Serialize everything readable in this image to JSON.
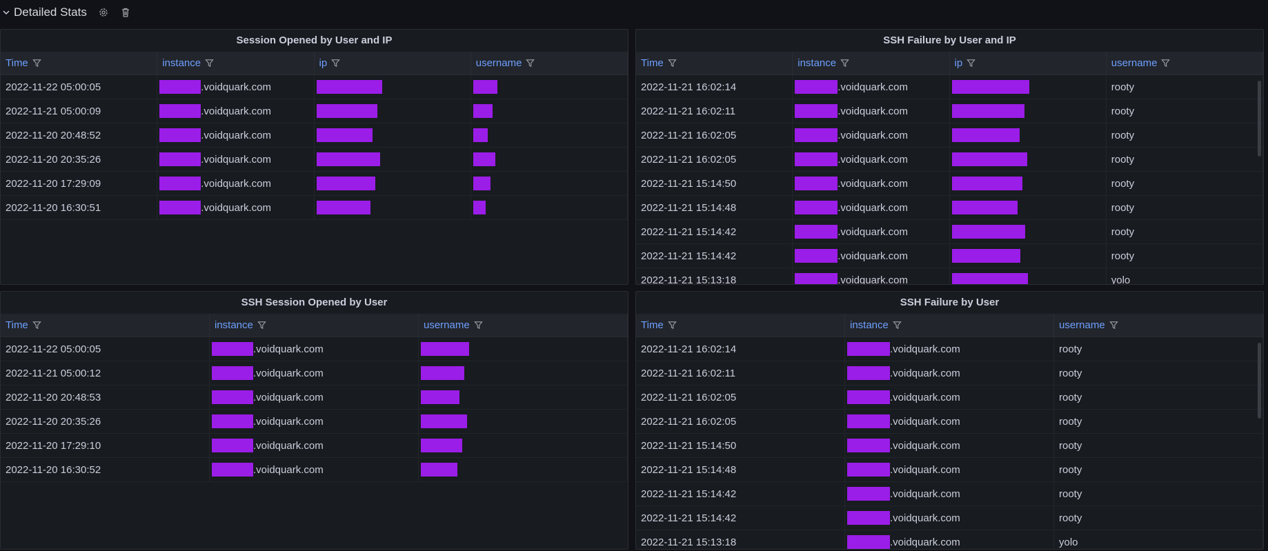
{
  "row": {
    "title": "Detailed Stats"
  },
  "panels": [
    {
      "title": "Session Opened by User and IP",
      "columns": [
        "Time",
        "instance",
        "ip",
        "username"
      ],
      "rows": [
        [
          "2022-11-22 05:00:05",
          ".voidquark.com",
          null,
          null
        ],
        [
          "2022-11-21 05:00:09",
          ".voidquark.com",
          null,
          null
        ],
        [
          "2022-11-20 20:48:52",
          ".voidquark.com",
          null,
          null
        ],
        [
          "2022-11-20 20:35:26",
          ".voidquark.com",
          null,
          null
        ],
        [
          "2022-11-20 17:29:09",
          ".voidquark.com",
          null,
          null
        ],
        [
          "2022-11-20 16:30:51",
          ".voidquark.com",
          null,
          null
        ]
      ]
    },
    {
      "title": "SSH Failure by User and IP",
      "columns": [
        "Time",
        "instance",
        "ip",
        "username"
      ],
      "rows": [
        [
          "2022-11-21 16:02:14",
          ".voidquark.com",
          null,
          "rooty"
        ],
        [
          "2022-11-21 16:02:11",
          ".voidquark.com",
          null,
          "rooty"
        ],
        [
          "2022-11-21 16:02:05",
          ".voidquark.com",
          null,
          "rooty"
        ],
        [
          "2022-11-21 16:02:05",
          ".voidquark.com",
          null,
          "rooty"
        ],
        [
          "2022-11-21 15:14:50",
          ".voidquark.com",
          null,
          "rooty"
        ],
        [
          "2022-11-21 15:14:48",
          ".voidquark.com",
          null,
          "rooty"
        ],
        [
          "2022-11-21 15:14:42",
          ".voidquark.com",
          null,
          "rooty"
        ],
        [
          "2022-11-21 15:14:42",
          ".voidquark.com",
          null,
          "rooty"
        ],
        [
          "2022-11-21 15:13:18",
          ".voidquark.com",
          null,
          "yolo"
        ]
      ]
    },
    {
      "title": "SSH Session Opened by User",
      "columns": [
        "Time",
        "instance",
        "username"
      ],
      "rows": [
        [
          "2022-11-22 05:00:05",
          ".voidquark.com",
          null
        ],
        [
          "2022-11-21 05:00:12",
          ".voidquark.com",
          null
        ],
        [
          "2022-11-20 20:48:53",
          ".voidquark.com",
          null
        ],
        [
          "2022-11-20 20:35:26",
          ".voidquark.com",
          null
        ],
        [
          "2022-11-20 17:29:10",
          ".voidquark.com",
          null
        ],
        [
          "2022-11-20 16:30:52",
          ".voidquark.com",
          null
        ]
      ]
    },
    {
      "title": "SSH Failure by User",
      "columns": [
        "Time",
        "instance",
        "username"
      ],
      "rows": [
        [
          "2022-11-21 16:02:14",
          ".voidquark.com",
          "rooty"
        ],
        [
          "2022-11-21 16:02:11",
          ".voidquark.com",
          "rooty"
        ],
        [
          "2022-11-21 16:02:05",
          ".voidquark.com",
          "rooty"
        ],
        [
          "2022-11-21 16:02:05",
          ".voidquark.com",
          "rooty"
        ],
        [
          "2022-11-21 15:14:50",
          ".voidquark.com",
          "rooty"
        ],
        [
          "2022-11-21 15:14:48",
          ".voidquark.com",
          "rooty"
        ],
        [
          "2022-11-21 15:14:42",
          ".voidquark.com",
          "rooty"
        ],
        [
          "2022-11-21 15:14:42",
          ".voidquark.com",
          "rooty"
        ],
        [
          "2022-11-21 15:13:18",
          ".voidquark.com",
          "yolo"
        ]
      ]
    }
  ]
}
